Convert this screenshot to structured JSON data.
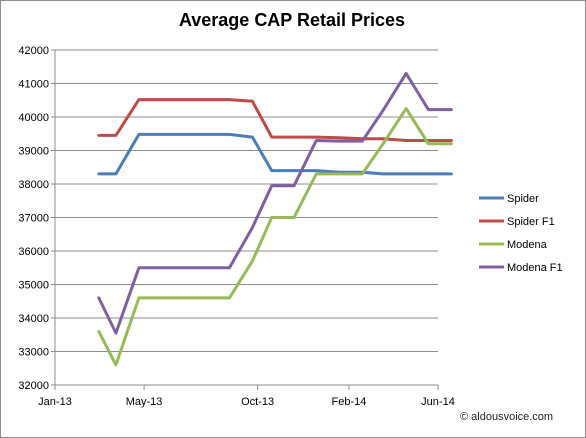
{
  "chart_data": {
    "type": "line",
    "title": "Average CAP Retail Prices",
    "xlabel": "",
    "ylabel": "",
    "ylim": [
      32000,
      42000
    ],
    "yticks": [
      32000,
      33000,
      34000,
      35000,
      36000,
      37000,
      38000,
      39000,
      40000,
      41000,
      42000
    ],
    "xticks": [
      "Jan-13",
      "May-13",
      "Oct-13",
      "Feb-14",
      "Jun-14"
    ],
    "x": [
      "2013-03-01",
      "2013-03-24",
      "2013-04-24",
      "2013-06-24",
      "2013-07-24",
      "2013-08-24",
      "2013-09-24",
      "2013-10-20",
      "2013-11-19",
      "2013-12-19",
      "2014-01-19",
      "2014-02-19",
      "2014-03-19",
      "2014-04-19",
      "2014-05-19",
      "2014-06-19"
    ],
    "grid": true,
    "legend_position": "right",
    "series": [
      {
        "name": "Spider",
        "color": "#4a7ebb",
        "values": [
          38300,
          38300,
          39480,
          39480,
          39480,
          39480,
          39400,
          38400,
          38400,
          38400,
          38350,
          38350,
          38300,
          38300,
          38300,
          38300
        ]
      },
      {
        "name": "Spider F1",
        "color": "#be4b48",
        "values": [
          39450,
          39450,
          40520,
          40520,
          40520,
          40520,
          40470,
          39400,
          39400,
          39400,
          39380,
          39350,
          39350,
          39300,
          39300,
          39300
        ]
      },
      {
        "name": "Modena",
        "color": "#98b954",
        "values": [
          33600,
          32600,
          34600,
          34600,
          34600,
          34600,
          35700,
          37000,
          37000,
          38300,
          38300,
          38300,
          39200,
          40250,
          39200,
          39200
        ]
      },
      {
        "name": "Modena F1",
        "color": "#7d60a0",
        "values": [
          34600,
          33550,
          35500,
          35500,
          35500,
          35500,
          36700,
          37950,
          37950,
          39300,
          39280,
          39280,
          40200,
          41300,
          40220,
          40220
        ]
      }
    ]
  },
  "copyright": "© aldousvoice.com"
}
